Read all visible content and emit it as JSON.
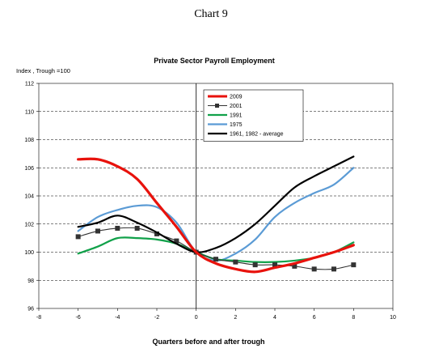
{
  "chart_number": "Chart 9",
  "chart_data": {
    "type": "line",
    "title": "Private Sector Payroll Employment",
    "ylabel": "Index , Trough =100",
    "xlabel": "Quarters before and after trough",
    "xlim": [
      -8,
      10
    ],
    "ylim": [
      96,
      112
    ],
    "xticks": [
      "-8",
      "-6",
      "-4",
      "-2",
      "0",
      "2",
      "4",
      "6",
      "8",
      "10"
    ],
    "yticks": [
      "96",
      "98",
      "100",
      "102",
      "104",
      "106",
      "108",
      "110",
      "112"
    ],
    "grid": "horizontal dashed",
    "legend_position": "top-center",
    "series": [
      {
        "name": "2009",
        "color": "#e8120c",
        "marker": "none",
        "x": [
          -6,
          -5,
          -4,
          -3,
          -2,
          -1,
          0,
          1,
          2,
          3,
          4,
          5,
          6,
          7,
          8
        ],
        "y": [
          106.6,
          106.6,
          106.1,
          105.2,
          103.5,
          101.8,
          100.0,
          99.2,
          98.8,
          98.6,
          98.9,
          99.2,
          99.6,
          100.0,
          100.5
        ]
      },
      {
        "name": "2001",
        "color": "#333333",
        "marker": "square",
        "x": [
          -6,
          -5,
          -4,
          -3,
          -2,
          -1,
          0,
          1,
          2,
          3,
          4,
          5,
          6,
          7,
          8
        ],
        "y": [
          101.1,
          101.5,
          101.7,
          101.7,
          101.3,
          100.8,
          100.0,
          99.5,
          99.3,
          99.1,
          99.1,
          99.0,
          98.8,
          98.8,
          99.1
        ]
      },
      {
        "name": "1991",
        "color": "#11a14a",
        "marker": "none",
        "x": [
          -6,
          -5,
          -4,
          -3,
          -2,
          -1,
          0,
          1,
          2,
          3,
          4,
          5,
          6,
          7,
          8
        ],
        "y": [
          99.9,
          100.4,
          101.0,
          101.0,
          100.9,
          100.6,
          100.0,
          99.5,
          99.4,
          99.3,
          99.3,
          99.4,
          99.6,
          100.0,
          100.7
        ]
      },
      {
        "name": "1975",
        "color": "#5b9bd5",
        "marker": "none",
        "x": [
          -6,
          -5,
          -4,
          -3,
          -2,
          -1,
          0,
          1,
          2,
          3,
          4,
          5,
          6,
          7,
          8
        ],
        "y": [
          101.5,
          102.5,
          103.0,
          103.3,
          103.2,
          102.1,
          100.0,
          99.4,
          99.9,
          100.9,
          102.5,
          103.5,
          104.2,
          104.8,
          106.0
        ]
      },
      {
        "name": "1961, 1982 - average",
        "color": "#000000",
        "marker": "none",
        "x": [
          -6,
          -5,
          -4,
          -3,
          -2,
          -1,
          0,
          1,
          2,
          3,
          4,
          5,
          6,
          7,
          8
        ],
        "y": [
          101.8,
          102.1,
          102.6,
          102.1,
          101.4,
          100.6,
          100.0,
          100.3,
          101.0,
          102.0,
          103.3,
          104.6,
          105.4,
          106.1,
          106.8
        ]
      }
    ]
  }
}
